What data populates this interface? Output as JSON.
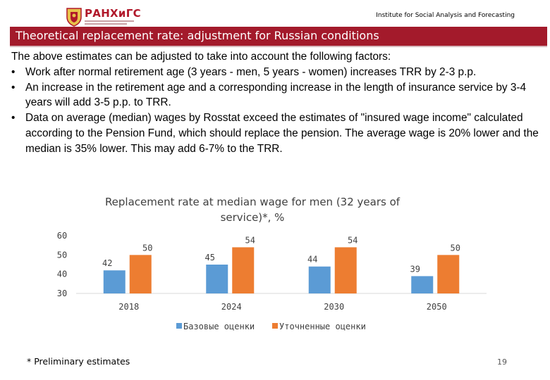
{
  "header": {
    "logo_text": "РАНХиГС",
    "institute": "Institute for Social Analysis and Forecasting"
  },
  "title": "Theoretical replacement rate: adjustment for Russian conditions",
  "intro": "The above estimates can be adjusted to take into account the following factors:",
  "bullets": [
    "Work after normal retirement age (3 years - men, 5 years - women) increases TRR by 2-3 p.p.",
    "An increase in the retirement age and a corresponding increase in the length of insurance service by 3-4 years will add 3-5 p.p. to TRR.",
    "Data on average (median) wages by Rosstat exceed the estimates of \"insured wage income\" calculated according to the Pension Fund, which should replace the pension. The average wage is 20% lower and the median is 35% lower. This may add 6-7% to the TRR."
  ],
  "bullet_symbol": "•",
  "chart_data": {
    "type": "bar",
    "title": "Replacement rate at median wage for men (32 years of service)*, %",
    "categories": [
      "2018",
      "2024",
      "2030",
      "2050"
    ],
    "series": [
      {
        "name": "Базовые оценки",
        "values": [
          42,
          45,
          44,
          39
        ],
        "color": "#5b9bd5"
      },
      {
        "name": "Уточненные оценки",
        "values": [
          50,
          54,
          54,
          50
        ],
        "color": "#ed7d31"
      }
    ],
    "ylim": [
      30,
      60
    ],
    "yticks": [
      "30",
      "40",
      "50",
      "60"
    ],
    "legend": "bottom"
  },
  "footnote": "* Preliminary estimates",
  "page_number": "19"
}
